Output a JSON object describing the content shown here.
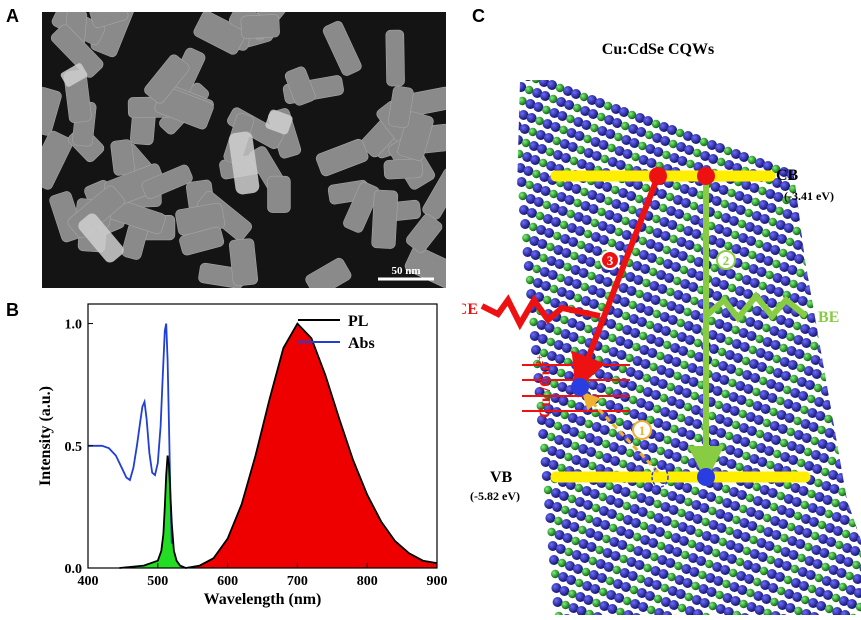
{
  "panel_a": {
    "letter": "A",
    "scale_bar_label": "50 nm"
  },
  "panel_b": {
    "letter": "B",
    "chart_data": {
      "type": "line",
      "xlabel": "Wavelength (nm)",
      "ylabel": "Intensity (a.u.)",
      "xlim": [
        400,
        900
      ],
      "ylim": [
        0.0,
        1.08
      ],
      "x_ticks": [
        400,
        500,
        600,
        700,
        800,
        900
      ],
      "y_ticks": [
        0.0,
        0.5,
        1.0
      ],
      "y_tick_labels": [
        "0.0",
        "0.5",
        "1.0"
      ],
      "legend": {
        "position": "top-right",
        "entries": [
          "PL",
          "Abs"
        ]
      },
      "series": [
        {
          "name": "PL",
          "color": "#000000",
          "fill_colors": [
            "#22dd22",
            "#ee0000"
          ],
          "x": [
            445,
            480,
            500,
            505,
            508,
            510,
            512,
            514,
            516,
            518,
            520,
            523,
            527,
            532,
            540,
            560,
            580,
            600,
            620,
            640,
            660,
            680,
            700,
            720,
            740,
            760,
            780,
            800,
            820,
            840,
            860,
            880,
            900
          ],
          "y": [
            0.0,
            0.01,
            0.03,
            0.07,
            0.14,
            0.25,
            0.38,
            0.46,
            0.42,
            0.3,
            0.18,
            0.07,
            0.03,
            0.01,
            0.0,
            0.01,
            0.04,
            0.12,
            0.26,
            0.46,
            0.69,
            0.9,
            1.0,
            0.94,
            0.79,
            0.61,
            0.44,
            0.3,
            0.19,
            0.11,
            0.06,
            0.03,
            0.02
          ]
        },
        {
          "name": "Abs",
          "color": "#1f3fd6",
          "x": [
            400,
            410,
            420,
            430,
            440,
            450,
            455,
            460,
            465,
            470,
            475,
            478,
            481,
            484,
            488,
            492,
            496,
            500,
            504,
            507,
            510,
            512,
            514,
            516,
            518,
            520
          ],
          "y": [
            0.5,
            0.5,
            0.5,
            0.49,
            0.46,
            0.4,
            0.37,
            0.36,
            0.41,
            0.5,
            0.6,
            0.66,
            0.68,
            0.61,
            0.47,
            0.39,
            0.38,
            0.43,
            0.58,
            0.78,
            0.97,
            1.0,
            0.85,
            0.58,
            0.3,
            0.1
          ]
        }
      ]
    }
  },
  "panel_c": {
    "letter": "C",
    "title": "Cu:CdSe CQWs",
    "cb_label": "CB",
    "cb_energy": "(-3.41 eV)",
    "vb_label": "VB",
    "vb_energy": "(-5.82 eV)",
    "ce_label": "CE",
    "be_label": "BE",
    "cu_label": "Cu",
    "cu_sup1": "+",
    "cu_sep": "/Cu",
    "cu_sup2": "2+",
    "step1": "1",
    "step2": "2",
    "step3": "3",
    "colors": {
      "band": "#ffee00",
      "ce": "#ee1111",
      "be": "#88cc44",
      "step1": "#f0b030",
      "electron": "#ee1111",
      "hole": "#2a3de0",
      "atom_blue": "#2222aa",
      "atom_green": "#22aa22"
    }
  }
}
